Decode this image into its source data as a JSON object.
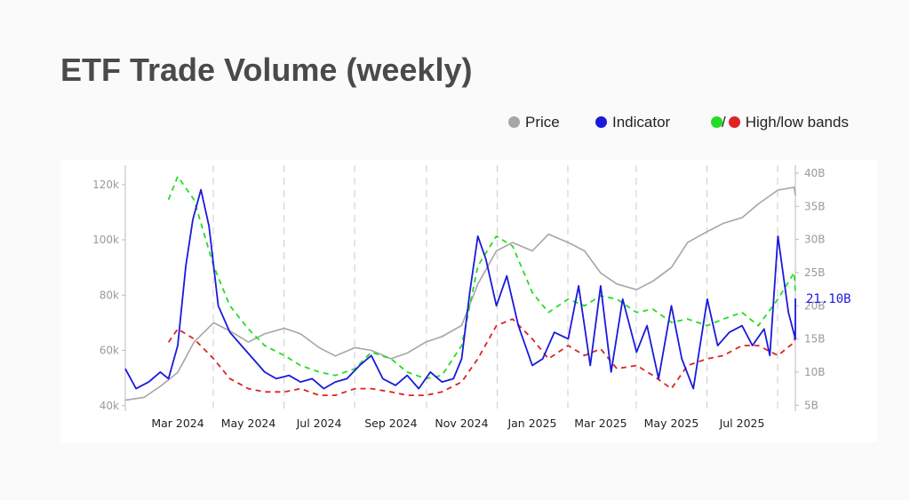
{
  "title": "ETF Trade Volume (weekly)",
  "legend": {
    "price": "Price",
    "indicator": "Indicator",
    "sep": "/",
    "bands": "High/low bands"
  },
  "colors": {
    "price": "#a6a6a6",
    "indicator": "#1a1adc",
    "high_band": "#22dd22",
    "low_band": "#dd2222",
    "grid": "#cccccc"
  },
  "last_value_label": "21.10B",
  "chart_data": {
    "type": "line",
    "x_ticks": [
      "Mar 2024",
      "May 2024",
      "Jul 2024",
      "Sep 2024",
      "Nov 2024",
      "Jan 2025",
      "Mar 2025",
      "May 2025",
      "Jul 2025"
    ],
    "y_left": {
      "ticks": [
        "40k",
        "60k",
        "80k",
        "100k",
        "120k"
      ],
      "range": [
        38000,
        127000
      ]
    },
    "y_right": {
      "ticks": [
        "5B",
        "10B",
        "15B",
        "20B",
        "25B",
        "30B",
        "35B",
        "40B"
      ],
      "range": [
        4.1,
        41.2
      ]
    },
    "grid": "vertical dashed",
    "legend_position": "top-right",
    "series": [
      {
        "name": "Price",
        "axis": "left",
        "x": [
          "2024-01-15",
          "2024-02-01",
          "2024-02-15",
          "2024-03-01",
          "2024-03-15",
          "2024-04-01",
          "2024-04-15",
          "2024-05-01",
          "2024-05-15",
          "2024-06-01",
          "2024-06-15",
          "2024-07-01",
          "2024-07-15",
          "2024-08-01",
          "2024-08-15",
          "2024-09-01",
          "2024-09-15",
          "2024-10-01",
          "2024-10-15",
          "2024-11-01",
          "2024-11-15",
          "2024-12-01",
          "2024-12-15",
          "2025-01-01",
          "2025-01-15",
          "2025-02-01",
          "2025-02-15",
          "2025-03-01",
          "2025-03-15",
          "2025-04-01",
          "2025-04-15",
          "2025-05-01",
          "2025-05-15",
          "2025-06-01",
          "2025-06-15",
          "2025-07-01",
          "2025-07-15",
          "2025-08-01",
          "2025-08-15",
          "2025-08-25"
        ],
        "values": [
          42000,
          43000,
          47000,
          52000,
          63000,
          70000,
          67000,
          63000,
          66000,
          68000,
          66000,
          61000,
          58000,
          61000,
          60000,
          57000,
          59000,
          63000,
          65000,
          69000,
          84000,
          96000,
          99000,
          96000,
          102000,
          99000,
          96000,
          88000,
          84000,
          82000,
          85000,
          90000,
          99000,
          103000,
          106000,
          108000,
          113000,
          118000,
          119000,
          116000
        ]
      },
      {
        "name": "Indicator",
        "axis": "right",
        "x": [
          "2024-01-15",
          "2024-01-25",
          "2024-02-05",
          "2024-02-15",
          "2024-02-22",
          "2024-03-01",
          "2024-03-08",
          "2024-03-14",
          "2024-03-21",
          "2024-03-28",
          "2024-04-05",
          "2024-04-15",
          "2024-04-25",
          "2024-05-05",
          "2024-05-15",
          "2024-05-25",
          "2024-06-05",
          "2024-06-15",
          "2024-06-25",
          "2024-07-05",
          "2024-07-15",
          "2024-07-25",
          "2024-08-05",
          "2024-08-15",
          "2024-08-25",
          "2024-09-05",
          "2024-09-15",
          "2024-09-25",
          "2024-10-05",
          "2024-10-15",
          "2024-10-25",
          "2024-11-01",
          "2024-11-08",
          "2024-11-15",
          "2024-11-22",
          "2024-12-01",
          "2024-12-10",
          "2024-12-20",
          "2025-01-01",
          "2025-01-10",
          "2025-01-20",
          "2025-02-01",
          "2025-02-10",
          "2025-02-20",
          "2025-03-01",
          "2025-03-10",
          "2025-03-20",
          "2025-04-01",
          "2025-04-10",
          "2025-04-20",
          "2025-05-01",
          "2025-05-10",
          "2025-05-20",
          "2025-06-01",
          "2025-06-10",
          "2025-06-20",
          "2025-07-01",
          "2025-07-10",
          "2025-07-20",
          "2025-07-25",
          "2025-08-01",
          "2025-08-10",
          "2025-08-20",
          "2025-08-25"
        ],
        "values": [
          10.5,
          7.5,
          8.5,
          10.0,
          9.0,
          14.0,
          26.0,
          33.0,
          37.5,
          32.0,
          20.0,
          16.0,
          14.0,
          12.0,
          10.0,
          9.0,
          9.5,
          8.5,
          9.0,
          7.5,
          8.5,
          9.0,
          11.0,
          12.5,
          9.0,
          8.0,
          9.5,
          7.5,
          10.0,
          8.5,
          9.0,
          12.0,
          22.0,
          30.5,
          27.0,
          20.0,
          24.5,
          17.0,
          11.0,
          12.0,
          16.0,
          15.0,
          23.0,
          11.0,
          23.0,
          10.0,
          21.0,
          13.0,
          17.0,
          9.0,
          20.0,
          12.0,
          7.5,
          21.0,
          14.0,
          16.0,
          17.0,
          14.0,
          16.5,
          12.5,
          30.5,
          19.0,
          15.0,
          21.1
        ]
      },
      {
        "name": "High band",
        "axis": "right",
        "x": [
          "2024-02-22",
          "2024-03-01",
          "2024-03-15",
          "2024-04-01",
          "2024-04-15",
          "2024-05-01",
          "2024-05-15",
          "2024-06-01",
          "2024-06-15",
          "2024-07-01",
          "2024-07-15",
          "2024-08-01",
          "2024-08-15",
          "2024-09-01",
          "2024-09-15",
          "2024-10-01",
          "2024-10-15",
          "2024-11-01",
          "2024-11-15",
          "2024-12-01",
          "2024-12-15",
          "2025-01-01",
          "2025-01-15",
          "2025-02-01",
          "2025-02-15",
          "2025-03-01",
          "2025-03-15",
          "2025-04-01",
          "2025-04-15",
          "2025-05-01",
          "2025-05-15",
          "2025-06-01",
          "2025-06-15",
          "2025-07-01",
          "2025-07-15",
          "2025-08-01",
          "2025-08-15",
          "2025-08-25"
        ],
        "values": [
          36,
          39.5,
          36,
          26,
          20,
          16.5,
          14,
          12.5,
          11,
          10,
          9.5,
          10.5,
          13,
          12,
          10,
          9,
          9.5,
          14,
          26,
          30.5,
          29,
          22,
          19,
          21,
          20,
          21.5,
          21,
          19,
          19.5,
          17.5,
          18,
          17,
          18,
          19,
          17,
          21,
          25,
          22
        ]
      },
      {
        "name": "Low band",
        "axis": "right",
        "x": [
          "2024-02-22",
          "2024-03-01",
          "2024-03-15",
          "2024-04-01",
          "2024-04-15",
          "2024-05-01",
          "2024-05-15",
          "2024-06-01",
          "2024-06-15",
          "2024-07-01",
          "2024-07-15",
          "2024-08-01",
          "2024-08-15",
          "2024-09-01",
          "2024-09-15",
          "2024-10-01",
          "2024-10-15",
          "2024-11-01",
          "2024-11-15",
          "2024-12-01",
          "2024-12-15",
          "2025-01-01",
          "2025-01-15",
          "2025-02-01",
          "2025-02-15",
          "2025-03-01",
          "2025-03-15",
          "2025-04-01",
          "2025-04-15",
          "2025-05-01",
          "2025-05-15",
          "2025-06-01",
          "2025-06-15",
          "2025-07-01",
          "2025-07-15",
          "2025-08-01",
          "2025-08-15",
          "2025-08-25"
        ],
        "values": [
          14.5,
          16.5,
          15,
          12,
          9,
          7.5,
          7,
          7,
          7.5,
          6.5,
          6.5,
          7.5,
          7.5,
          7,
          6.5,
          6.5,
          7,
          8.5,
          12,
          17,
          18,
          15,
          12,
          14,
          12.5,
          13.5,
          10.5,
          11,
          9.5,
          7.5,
          11,
          12,
          12.5,
          14,
          14,
          12.5,
          14.5,
          16
        ]
      }
    ]
  }
}
